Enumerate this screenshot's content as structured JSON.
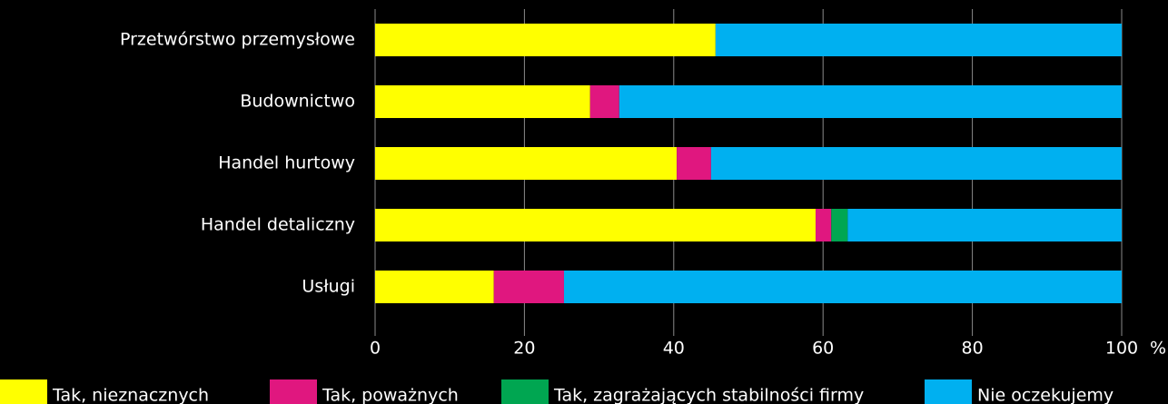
{
  "chart_data": {
    "type": "stacked-bar-horizontal",
    "categories": [
      "Przetwórstwo przemysłowe",
      "Budownictwo",
      "Handel hurtowy",
      "Handel detaliczny",
      "Usługi"
    ],
    "series": [
      {
        "name": "Tak, nieznacznych",
        "color": "#ffff00",
        "values": [
          45.6,
          28.8,
          40.4,
          59.0,
          15.9
        ]
      },
      {
        "name": "Tak, poważnych",
        "color": "#e0177f",
        "values": [
          0,
          3.9,
          4.6,
          2.1,
          9.4
        ]
      },
      {
        "name": "Tak, zagrażających stabilności firmy",
        "color": "#00a651",
        "values": [
          0,
          0,
          0,
          2.2,
          0
        ]
      },
      {
        "name": "Nie oczekujemy",
        "color": "#00b0f0",
        "values": [
          54.4,
          67.3,
          55.0,
          36.7,
          74.7
        ]
      }
    ],
    "xlabel": "%",
    "xlim": [
      0,
      100
    ],
    "xticks": [
      0,
      20,
      40,
      60,
      80,
      100
    ],
    "grid": true,
    "legend": "bottom"
  }
}
